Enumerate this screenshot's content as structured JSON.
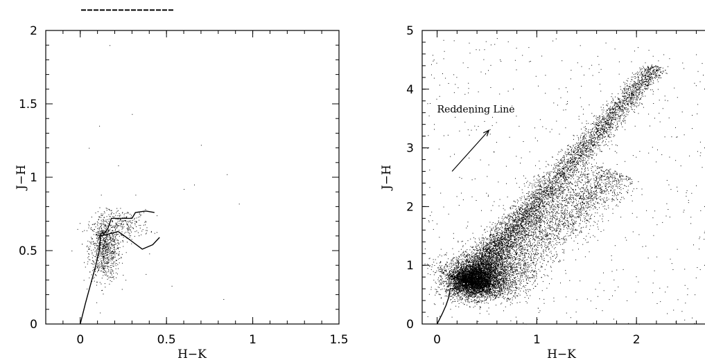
{
  "chart_data": [
    {
      "type": "scatter",
      "title": "",
      "xlabel": "H−K",
      "ylabel": "J−H",
      "xlim": [
        -0.2,
        1.5
      ],
      "ylim": [
        0,
        2
      ],
      "xticks": [
        {
          "v": 0,
          "label": "0"
        },
        {
          "v": 0.5,
          "label": "0.5"
        },
        {
          "v": 1,
          "label": "1"
        },
        {
          "v": 1.5,
          "label": "1.5"
        }
      ],
      "yticks": [
        {
          "v": 0,
          "label": "0"
        },
        {
          "v": 0.5,
          "label": "0.5"
        },
        {
          "v": 1,
          "label": "1"
        },
        {
          "v": 1.5,
          "label": "1.5"
        },
        {
          "v": 2,
          "label": "2"
        }
      ],
      "x_minor_step": 0.1,
      "y_minor_step": 0.1,
      "grid": false,
      "scatter_clusters": [
        {
          "cx": 0.14,
          "cy": 0.52,
          "sx": 0.045,
          "sy": 0.11,
          "n": 900
        },
        {
          "cx": 0.26,
          "cy": 0.68,
          "sx": 0.07,
          "sy": 0.05,
          "n": 220
        }
      ],
      "scatter_outliers": [
        {
          "x": 0.17,
          "y": 1.9
        },
        {
          "x": 0.3,
          "y": 1.43
        },
        {
          "x": 0.7,
          "y": 1.22
        },
        {
          "x": 0.85,
          "y": 1.02
        },
        {
          "x": 0.66,
          "y": 0.95
        },
        {
          "x": 0.92,
          "y": 0.82
        },
        {
          "x": 0.4,
          "y": 0.48
        },
        {
          "x": 0.05,
          "y": 1.2
        },
        {
          "x": 0.6,
          "y": 0.92
        },
        {
          "x": 0.83,
          "y": 0.17
        },
        {
          "x": 0.53,
          "y": 0.26
        },
        {
          "x": 0.11,
          "y": 1.35
        },
        {
          "x": 0.38,
          "y": 0.34
        },
        {
          "x": 0.22,
          "y": 1.08
        },
        {
          "x": -0.05,
          "y": 0.5
        },
        {
          "x": 0.32,
          "y": 0.88
        },
        {
          "x": 0.43,
          "y": 0.62
        },
        {
          "x": 0.02,
          "y": 0.3
        }
      ],
      "tracks": [
        {
          "name": "",
          "points": [
            [
              0,
              0
            ],
            [
              0.03,
              0.14
            ],
            [
              0.06,
              0.27
            ],
            [
              0.09,
              0.4
            ],
            [
              0.11,
              0.5
            ],
            [
              0.12,
              0.62
            ],
            [
              0.14,
              0.62
            ],
            [
              0.16,
              0.65
            ],
            [
              0.18,
              0.72
            ],
            [
              0.3,
              0.72
            ],
            [
              0.32,
              0.76
            ],
            [
              0.38,
              0.77
            ],
            [
              0.43,
              0.76
            ]
          ]
        },
        {
          "name": "",
          "points": [
            [
              0.12,
              0.6
            ],
            [
              0.22,
              0.63
            ],
            [
              0.28,
              0.58
            ],
            [
              0.36,
              0.51
            ],
            [
              0.42,
              0.54
            ],
            [
              0.46,
              0.59
            ]
          ]
        }
      ]
    },
    {
      "type": "scatter",
      "title": "",
      "xlabel": "H−K",
      "ylabel": "J−H",
      "xlim": [
        -0.15,
        2.75
      ],
      "ylim": [
        0,
        5
      ],
      "xticks": [
        {
          "v": 0,
          "label": "0"
        },
        {
          "v": 1,
          "label": "1"
        },
        {
          "v": 2,
          "label": "2"
        }
      ],
      "yticks": [
        {
          "v": 0,
          "label": "0"
        },
        {
          "v": 1,
          "label": "1"
        },
        {
          "v": 2,
          "label": "2"
        },
        {
          "v": 3,
          "label": "3"
        },
        {
          "v": 4,
          "label": "4"
        },
        {
          "v": 5,
          "label": "5"
        }
      ],
      "x_minor_step": 0.2,
      "y_minor_step": 0.2,
      "grid": false,
      "scatter_clusters": [
        {
          "cx": 0.35,
          "cy": 0.72,
          "sx": 0.13,
          "sy": 0.14,
          "n": 3000
        },
        {
          "cx": 0.5,
          "cy": 0.85,
          "sx": 0.22,
          "sy": 0.2,
          "n": 1500
        }
      ],
      "scatter_bands": [
        {
          "x0": 0.3,
          "y0": 0.72,
          "x1": 2.2,
          "y1": 4.4,
          "width": 0.1,
          "n": 6000,
          "bias": 0.55
        },
        {
          "x0": 0.35,
          "y0": 0.65,
          "x1": 1.8,
          "y1": 2.6,
          "width": 0.22,
          "n": 3500,
          "bias": 0.4
        }
      ],
      "background_points": {
        "x": [
          -0.1,
          2.7
        ],
        "y": [
          0,
          4.9
        ],
        "n": 600
      },
      "tracks": [
        {
          "name": "",
          "points": [
            [
              0,
              0
            ],
            [
              0.05,
              0.17
            ],
            [
              0.09,
              0.32
            ],
            [
              0.12,
              0.47
            ],
            [
              0.13,
              0.6
            ],
            [
              0.18,
              0.6
            ],
            [
              0.22,
              0.65
            ],
            [
              0.28,
              0.65
            ],
            [
              0.32,
              0.55
            ],
            [
              0.38,
              0.52
            ],
            [
              0.45,
              0.56
            ],
            [
              0.46,
              0.62
            ],
            [
              0.38,
              0.68
            ],
            [
              0.25,
              0.65
            ]
          ]
        }
      ],
      "annotations": [
        {
          "text": "Reddening Line",
          "x": 0.0,
          "y": 3.6
        },
        {
          "arrow_from": [
            0.15,
            2.6
          ],
          "arrow_to": [
            0.52,
            3.3
          ]
        }
      ]
    }
  ]
}
